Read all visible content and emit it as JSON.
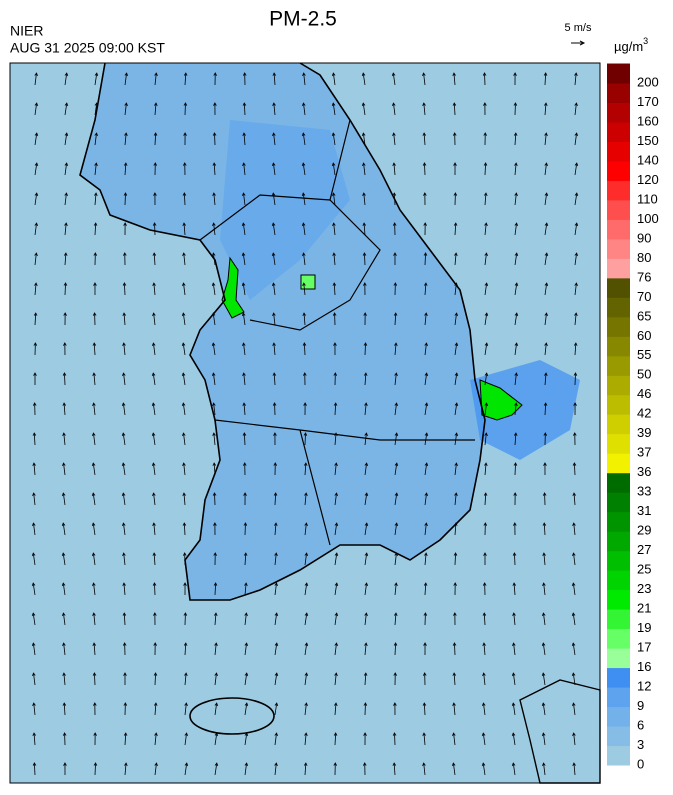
{
  "header": {
    "title": "PM-2.5",
    "agency": "NIER",
    "timestamp": "AUG 31 2025 09:00 KST",
    "wind_scale": "5 m/s"
  },
  "colorbar": {
    "unit": {
      "base": "µg/m",
      "exponent": "3"
    },
    "levels": [
      0,
      3,
      6,
      9,
      12,
      16,
      17,
      19,
      21,
      23,
      25,
      27,
      29,
      31,
      33,
      36,
      37,
      39,
      42,
      46,
      50,
      55,
      60,
      65,
      70,
      76,
      80,
      90,
      100,
      110,
      120,
      140,
      150,
      160,
      170,
      200
    ],
    "colors": [
      "#9dcbe2",
      "#86bde6",
      "#72b1ea",
      "#5ea3ee",
      "#3f8ff2",
      "#99ff99",
      "#66ff66",
      "#33f533",
      "#00ea00",
      "#00d400",
      "#00be00",
      "#00a800",
      "#009400",
      "#008000",
      "#006c00",
      "#f2f200",
      "#e0e000",
      "#cfcf00",
      "#bdbd00",
      "#abab00",
      "#999900",
      "#878700",
      "#757500",
      "#636300",
      "#515100",
      "#ffa0a0",
      "#ff8484",
      "#ff6a6a",
      "#ff4e4e",
      "#ff2c2c",
      "#ff0000",
      "#e60000",
      "#cc0000",
      "#b30000",
      "#990000",
      "#700000"
    ]
  }
}
